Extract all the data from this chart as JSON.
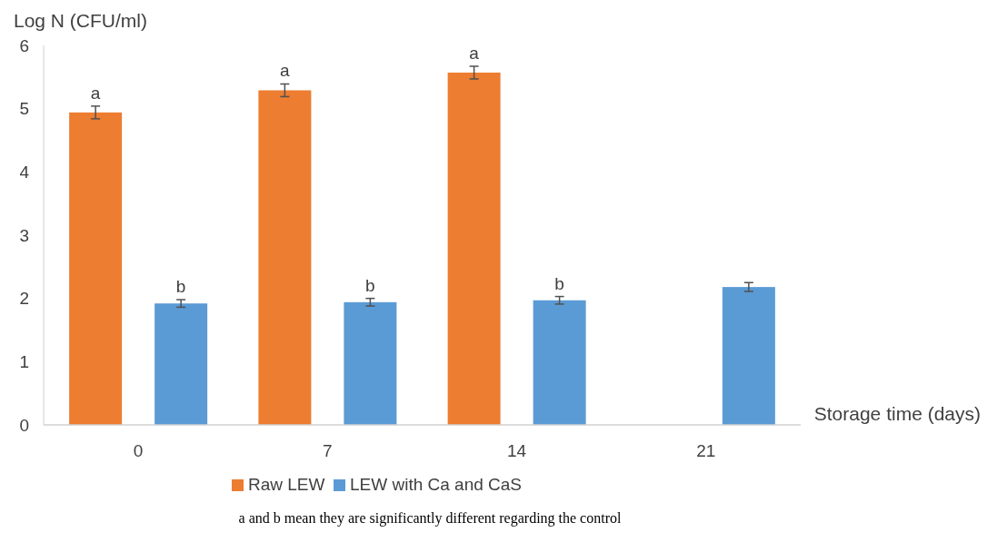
{
  "chart_data": {
    "type": "bar",
    "xlabel": "Storage time (days)",
    "ylabel": "Log N (CFU/ml)",
    "categories": [
      "0",
      "7",
      "14",
      "21"
    ],
    "series": [
      {
        "name": "Raw LEW",
        "color": "#ed7d31",
        "values": [
          4.94,
          5.29,
          5.57,
          null
        ],
        "errors": [
          0.1,
          0.1,
          0.1,
          null
        ],
        "value_labels": [
          "a",
          "a",
          "a",
          null
        ]
      },
      {
        "name": "LEW with Ca and CaS",
        "color": "#5b9bd5",
        "values": [
          1.92,
          1.94,
          1.97,
          2.18
        ],
        "errors": [
          0.06,
          0.06,
          0.06,
          0.07
        ],
        "value_labels": [
          "b",
          "b",
          "b",
          null
        ]
      }
    ],
    "ylim": [
      0,
      6
    ],
    "yticks": [
      0,
      1,
      2,
      3,
      4,
      5,
      6
    ],
    "grid": false,
    "legend": "bottom",
    "annotations": [
      "a and b mean they are significantly different regarding the control"
    ]
  }
}
